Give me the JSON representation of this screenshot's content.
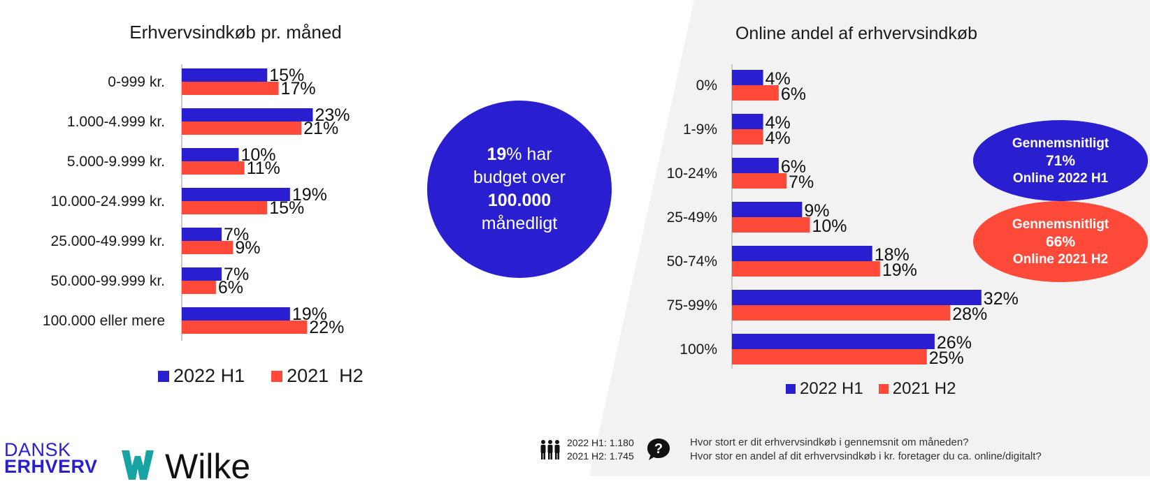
{
  "legend": {
    "h1_label": "2022 H1",
    "h2_label_left": "2021  H2",
    "h2_label_right": "2021 H2"
  },
  "colors": {
    "h1": "#2a1fd0",
    "h2": "#ff4a3a",
    "background": "#ffffff",
    "panel": "#f2f2f2"
  },
  "circle": {
    "highlight": "19",
    "line1_rest": "% har",
    "line2": "budget over",
    "line3": "100.000",
    "line4": "månedligt"
  },
  "oval_2022": {
    "title": "Gennemsnitligt",
    "value": "71%",
    "subtitle": "Online 2022 H1"
  },
  "oval_2021": {
    "title": "Gennemsnitligt",
    "value": "66%",
    "subtitle": "Online 2021 H2"
  },
  "footer": {
    "respondents_2022": "2022 H1: 1.180",
    "respondents_2021": "2021 H2: 1.745",
    "question1": "Hvor stort er dit erhvervsindkøb i gennemsnit om måneden?",
    "question2": "Hvor stor en andel af dit erhvervsindkøb i kr. foretager du ca. online/digitalt?",
    "people_icon": "people-icon",
    "question_icon": "question-bubble-icon"
  },
  "logos": {
    "dansk_line1": "DANSK",
    "dansk_line2": "ERHVERV",
    "wilke": "Wilke"
  },
  "chart_data": [
    {
      "type": "bar",
      "orientation": "horizontal",
      "title": "Erhvervsindkøb pr. måned",
      "categories": [
        "0-999 kr.",
        "1.000-4.999 kr.",
        "5.000-9.999 kr.",
        "10.000-24.999 kr.",
        "25.000-49.999 kr.",
        "50.000-99.999 kr.",
        "100.000 eller mere"
      ],
      "series": [
        {
          "name": "2022 H1",
          "values": [
            15,
            23,
            10,
            19,
            7,
            7,
            19
          ]
        },
        {
          "name": "2021 H2",
          "values": [
            17,
            21,
            11,
            15,
            9,
            6,
            22
          ]
        }
      ],
      "unit": "%",
      "xlim": [
        0,
        30
      ],
      "grid": false,
      "legend": "bottom"
    },
    {
      "type": "bar",
      "orientation": "horizontal",
      "title": "Online andel af erhvervsindkøb",
      "categories": [
        "0%",
        "1-9%",
        "10-24%",
        "25-49%",
        "50-74%",
        "75-99%",
        "100%"
      ],
      "series": [
        {
          "name": "2022 H1",
          "values": [
            4,
            4,
            6,
            9,
            18,
            32,
            26
          ]
        },
        {
          "name": "2021 H2",
          "values": [
            6,
            4,
            7,
            10,
            19,
            28,
            25
          ]
        }
      ],
      "unit": "%",
      "xlim": [
        0,
        35
      ],
      "grid": false,
      "legend": "bottom"
    }
  ]
}
